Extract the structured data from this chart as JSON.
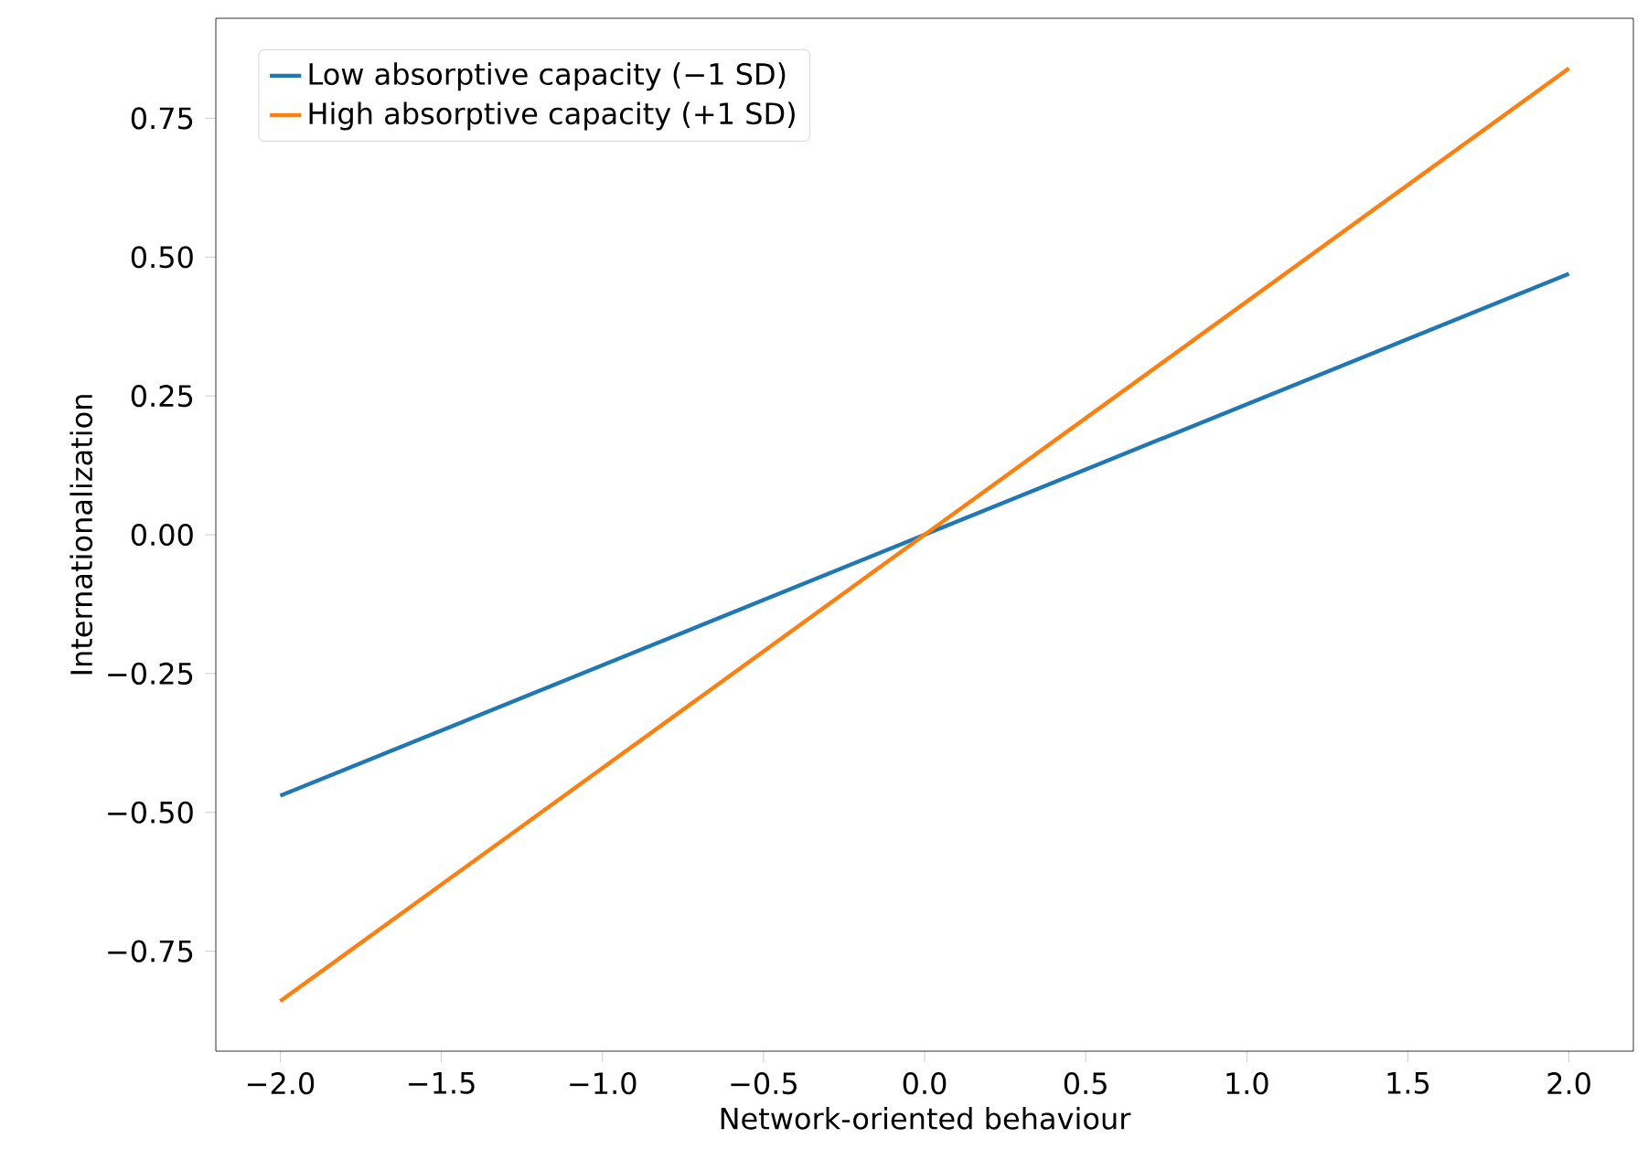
{
  "chart_data": {
    "type": "line",
    "xlabel": "Network-oriented behaviour",
    "ylabel": "Internationalization",
    "xlim": [
      -2.2,
      2.2
    ],
    "ylim": [
      -0.93,
      0.93
    ],
    "xticks": [
      {
        "value": -2,
        "label": "−2.0"
      },
      {
        "value": -1.5,
        "label": "−1.5"
      },
      {
        "value": -1,
        "label": "−1.0"
      },
      {
        "value": -0.5,
        "label": "−0.5"
      },
      {
        "value": 0,
        "label": "0.0"
      },
      {
        "value": 0.5,
        "label": "0.5"
      },
      {
        "value": 1,
        "label": "1.0"
      },
      {
        "value": 1.5,
        "label": "1.5"
      },
      {
        "value": 2,
        "label": "2.0"
      }
    ],
    "yticks": [
      {
        "value": -0.75,
        "label": "−0.75"
      },
      {
        "value": -0.5,
        "label": "−0.50"
      },
      {
        "value": -0.25,
        "label": "−0.25"
      },
      {
        "value": 0,
        "label": "0.00"
      },
      {
        "value": 0.25,
        "label": "0.25"
      },
      {
        "value": 0.5,
        "label": "0.50"
      },
      {
        "value": 0.75,
        "label": "0.75"
      }
    ],
    "legend": "top left",
    "grid": false,
    "marker": "none",
    "line_style": "solid",
    "series": [
      {
        "name": "Low absorptive capacity (−1 SD)",
        "color": "#1f77b4",
        "x": [
          -2,
          -1,
          0,
          1,
          2
        ],
        "values": [
          -0.47,
          -0.235,
          0,
          0.235,
          0.47
        ]
      },
      {
        "name": "High absorptive capacity (+1 SD)",
        "color": "#ff7f0e",
        "x": [
          -2,
          -1,
          0,
          1,
          2
        ],
        "values": [
          -0.84,
          -0.42,
          0,
          0.42,
          0.84
        ]
      }
    ]
  }
}
